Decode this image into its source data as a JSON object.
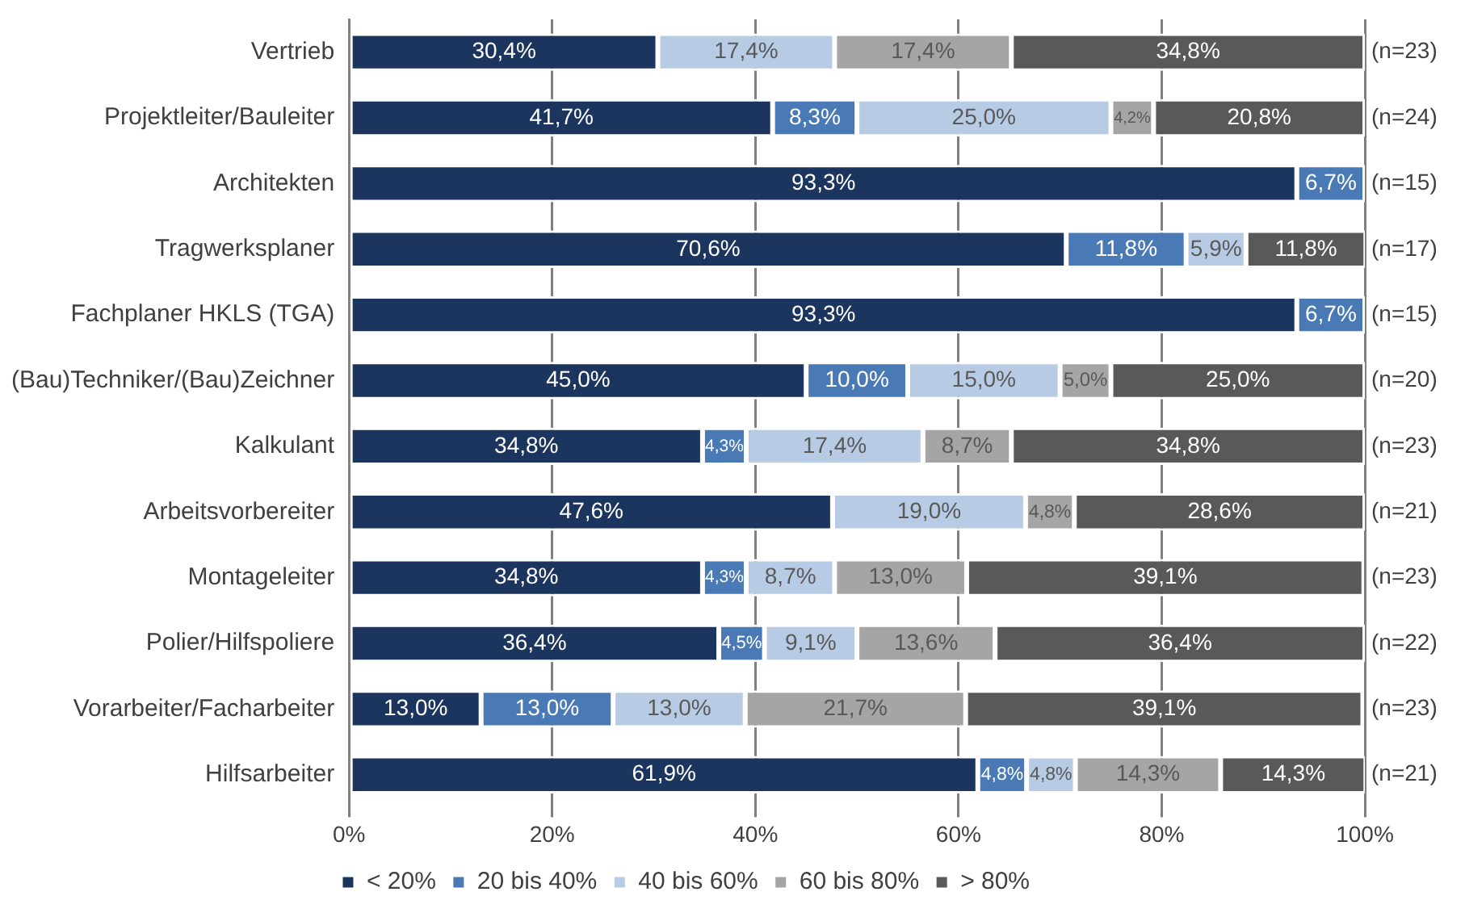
{
  "chart_data": {
    "type": "bar",
    "orientation": "horizontal",
    "stacked": true,
    "grid": "x",
    "legend": "bottom",
    "categories": [
      "Vertrieb",
      "Projektleiter/Bauleiter",
      "Architekten",
      "Tragwerksplaner",
      "Fachplaner HKLS (TGA)",
      "(Bau)Techniker/(Bau)Zeichner",
      "Kalkulant",
      "Arbeitsvorbereiter",
      "Montageleiter",
      "Polier/Hilfspoliere",
      "Vorarbeiter/Facharbeiter",
      "Hilfsarbeiter"
    ],
    "xlim": [
      0,
      100
    ],
    "xticks": [
      {
        "value": 0,
        "label": "0%"
      },
      {
        "value": 20,
        "label": "20%"
      },
      {
        "value": 40,
        "label": "40%"
      },
      {
        "value": 60,
        "label": "60%"
      },
      {
        "value": 80,
        "label": "80%"
      },
      {
        "value": 100,
        "label": "100%"
      }
    ],
    "series": [
      {
        "name": "< 20%",
        "color": "#1c355e",
        "values": [
          30.4,
          41.7,
          93.3,
          70.6,
          93.3,
          45.0,
          34.8,
          47.6,
          34.8,
          36.4,
          13.0,
          61.9
        ],
        "value_labels": [
          "30,4%",
          "41,7%",
          "93,3%",
          "70,6%",
          "93,3%",
          "45,0%",
          "34,8%",
          "47,6%",
          "34,8%",
          "36,4%",
          "13,0%",
          "61,9%"
        ]
      },
      {
        "name": "20 bis 40%",
        "color": "#4a7ab5",
        "values": [
          null,
          8.3,
          6.7,
          11.8,
          6.7,
          10.0,
          4.3,
          null,
          4.3,
          4.5,
          13.0,
          4.8
        ],
        "value_labels": [
          null,
          "8,3%",
          "6,7%",
          "11,8%",
          "6,7%",
          "10,0%",
          "4,3%",
          null,
          "4,3%",
          "4,5%",
          "13,0%",
          "4,8%"
        ]
      },
      {
        "name": "40 bis 60%",
        "color": "#b7cce4",
        "values": [
          17.4,
          25.0,
          null,
          5.9,
          null,
          15.0,
          17.4,
          19.0,
          8.7,
          9.1,
          13.0,
          4.8
        ],
        "value_labels": [
          "17,4%",
          "25,0%",
          null,
          "5,9%",
          null,
          "15,0%",
          "17,4%",
          "19,0%",
          "8,7%",
          "9,1%",
          "13,0%",
          "4,8%"
        ]
      },
      {
        "name": "60 bis 80%",
        "color": "#a5a5a5",
        "values": [
          17.4,
          4.2,
          null,
          null,
          null,
          5.0,
          8.7,
          4.8,
          13.0,
          13.6,
          21.7,
          14.3
        ],
        "value_labels": [
          "17,4%",
          "4,2%",
          null,
          null,
          null,
          "5,0%",
          "8,7%",
          "4,8%",
          "13,0%",
          "13,6%",
          "21,7%",
          "14,3%"
        ]
      },
      {
        "name": "> 80%",
        "color": "#595959",
        "values": [
          34.8,
          20.8,
          null,
          11.8,
          null,
          25.0,
          34.8,
          28.6,
          39.1,
          36.4,
          39.1,
          14.3
        ],
        "value_labels": [
          "34,8%",
          "20,8%",
          null,
          "11,8%",
          null,
          "25,0%",
          "34,8%",
          "28,6%",
          "39,1%",
          "36,4%",
          "39,1%",
          "14,3%"
        ]
      }
    ],
    "annotations": [
      "(n=23)",
      "(n=24)",
      "(n=15)",
      "(n=17)",
      "(n=15)",
      "(n=20)",
      "(n=23)",
      "(n=21)",
      "(n=23)",
      "(n=22)",
      "(n=23)",
      "(n=21)"
    ]
  }
}
